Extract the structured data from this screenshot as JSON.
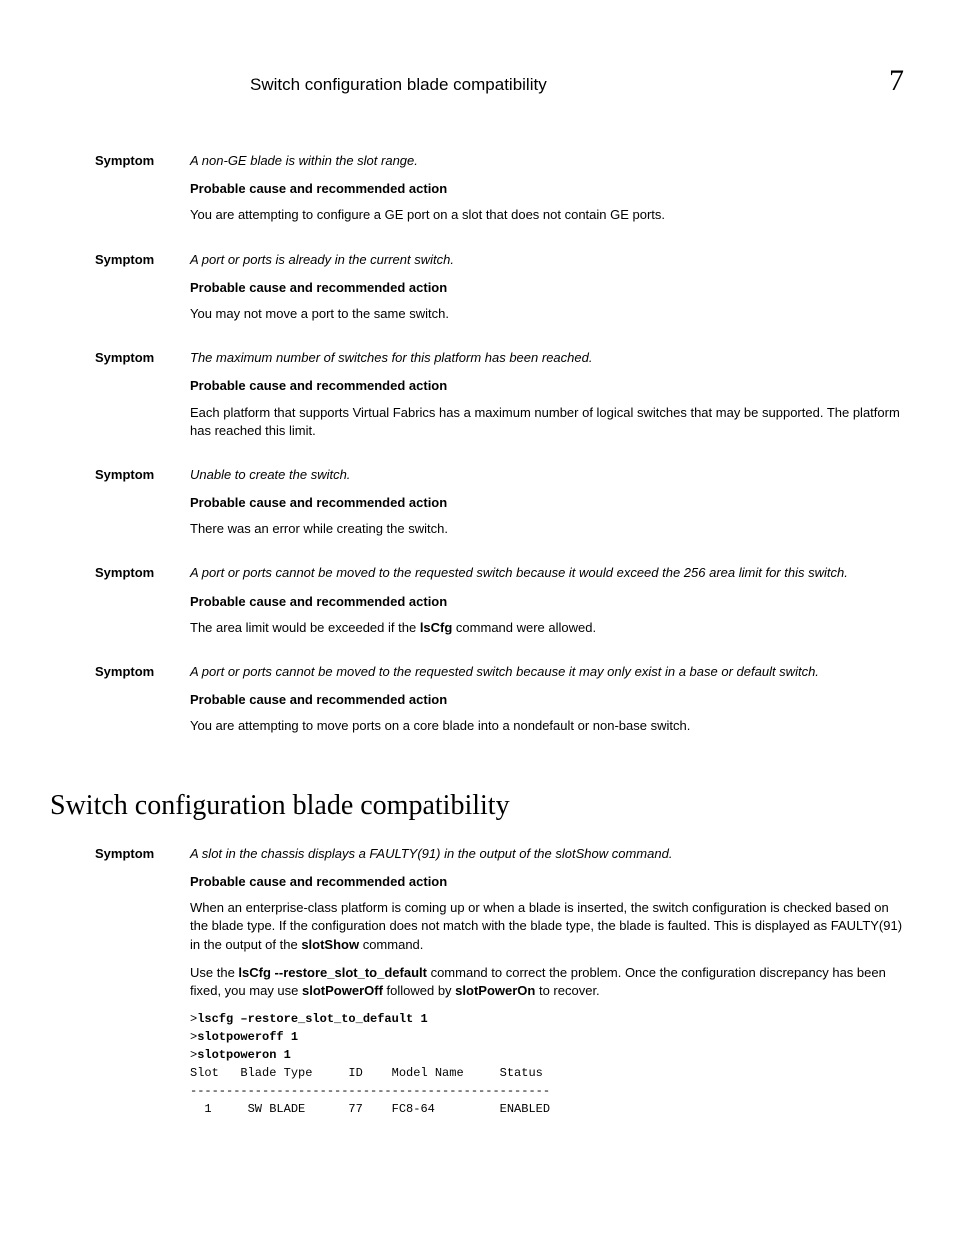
{
  "header": {
    "title": "Switch configuration blade compatibility",
    "chapter": "7"
  },
  "labels": {
    "symptom": "Symptom",
    "pcra": "Probable cause and recommended action"
  },
  "symptoms": [
    {
      "text": "A non-GE blade is within the slot range.",
      "action": "You are attempting to configure a GE port on a slot that does not contain GE ports."
    },
    {
      "text": "A port or ports is already in the current switch.",
      "action": "You may not move a port to the same switch."
    },
    {
      "text": "The maximum number of switches for this platform has been reached.",
      "action": "Each platform that supports Virtual Fabrics has a maximum number of logical switches that may be supported. The platform has reached this limit."
    },
    {
      "text": "Unable to create the switch.",
      "action": "There was an error while creating the switch."
    },
    {
      "text": "A port or ports cannot be moved to the requested switch because it would exceed the 256 area limit for this switch.",
      "action_pre": "The area limit would be exceeded if the ",
      "action_cmd": "lsCfg",
      "action_post": " command were allowed."
    },
    {
      "text": "A port or ports cannot be moved to the requested switch because it may only exist in a base or default switch.",
      "action": "You are attempting to move ports on a core blade into a nondefault or non-base switch."
    }
  ],
  "section2": {
    "heading": "Switch configuration blade compatibility",
    "symptom_text": "A slot in the chassis displays a FAULTY(91) in the output of the slotShow command.",
    "para1_pre": "When an enterprise-class platform is coming up or when a blade is inserted, the switch configuration is checked based on the blade type. If the configuration does not match with the blade type, the blade is faulted. This is displayed as FAULTY(91) in the output of the ",
    "para1_cmd": "slotShow",
    "para1_post": " command.",
    "para2_pre": "Use the ",
    "para2_cmd1": "lsCfg --restore_slot_to_default",
    "para2_mid": " command to correct the problem. Once the configuration discrepancy has been fixed, you may use ",
    "para2_cmd2": "slotPowerOff",
    "para2_mid2": " followed by ",
    "para2_cmd3": "slotPowerOn",
    "para2_post": " to recover.",
    "code": {
      "line1": "lscfg –restore_slot_to_default 1",
      "line2": "slotpoweroff 1",
      "line3": "slotpoweron 1",
      "header": "Slot   Blade Type     ID    Model Name     Status",
      "divider": "--------------------------------------------------",
      "row": "  1     SW BLADE      77    FC8-64         ENABLED"
    }
  }
}
